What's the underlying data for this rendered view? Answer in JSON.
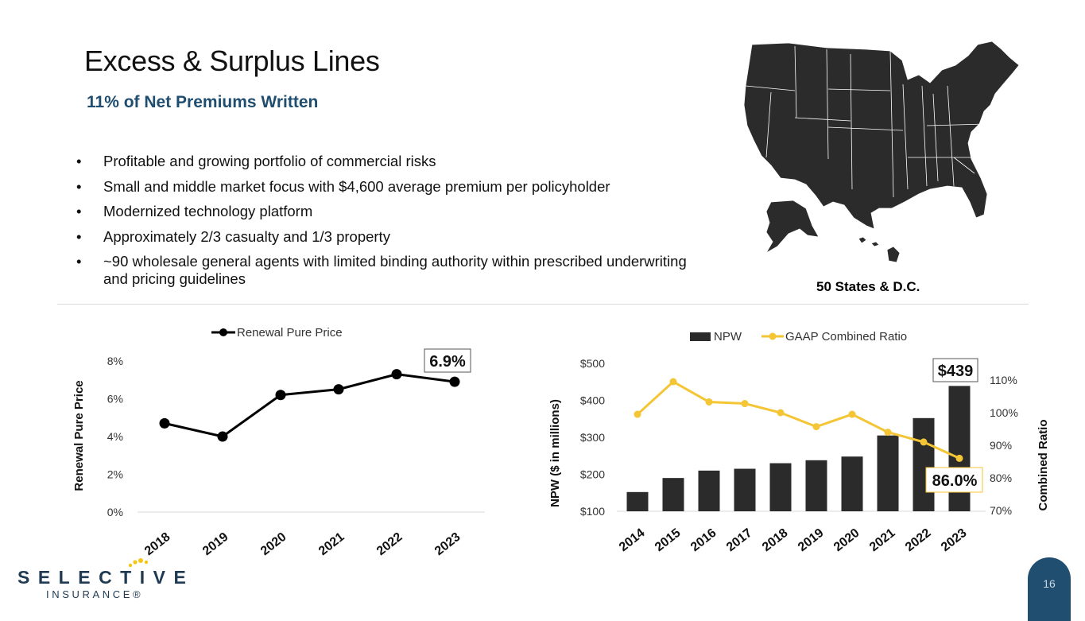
{
  "header": {
    "title": "Excess & Surplus Lines",
    "subtitle": "11% of Net Premiums Written"
  },
  "bullets": [
    "Profitable and growing portfolio of commercial risks",
    "Small and middle market focus with $4,600 average premium per policyholder",
    "Modernized technology platform",
    "Approximately 2/3 casualty and 1/3 property",
    "~90 wholesale general agents with limited binding authority within prescribed underwriting and pricing guidelines"
  ],
  "bullet_symbol": "•",
  "map": {
    "caption": "50 States & D.C.",
    "fill_color": "#2b2b2b"
  },
  "logo": {
    "word": "SELECTIVE",
    "sub": "INSURANCE®",
    "accent_color": "#f5c518"
  },
  "page_number": "16",
  "colors": {
    "subtitle": "#1f4e70",
    "bar": "#2b2b2b",
    "ratio_line": "#f4c534",
    "line": "#000000"
  },
  "chart_data": [
    {
      "type": "line",
      "legend": [
        "Renewal Pure Price"
      ],
      "legend_position": "top",
      "ylabel": "Renewal Pure Price",
      "x": [
        "2018",
        "2019",
        "2020",
        "2021",
        "2022",
        "2023"
      ],
      "series": [
        {
          "name": "Renewal Pure Price",
          "values": [
            4.7,
            4.0,
            6.2,
            6.5,
            7.3,
            6.9
          ]
        }
      ],
      "y_ticks": [
        "0%",
        "2%",
        "4%",
        "6%",
        "8%"
      ],
      "ylim": [
        0,
        8
      ],
      "callout": "6.9%",
      "grid": false
    },
    {
      "type": "bar",
      "legend": [
        "NPW",
        "GAAP Combined Ratio"
      ],
      "legend_position": "top",
      "ylabel": "NPW ($ in millions)",
      "y2label": "Combined Ratio",
      "categories": [
        "2014",
        "2015",
        "2016",
        "2017",
        "2018",
        "2019",
        "2020",
        "2021",
        "2022",
        "2023"
      ],
      "series": [
        {
          "name": "NPW",
          "type": "bar",
          "values": [
            152,
            190,
            210,
            215,
            230,
            238,
            248,
            305,
            352,
            439
          ]
        },
        {
          "name": "GAAP Combined Ratio",
          "type": "line",
          "axis": "right",
          "values": [
            99.5,
            109.5,
            103.3,
            102.8,
            100.0,
            95.7,
            99.5,
            94.0,
            91.0,
            86.0
          ]
        }
      ],
      "y_ticks": [
        "$100",
        "$200",
        "$300",
        "$400",
        "$500"
      ],
      "ylim": [
        100,
        500
      ],
      "y2_ticks": [
        "70%",
        "80%",
        "90%",
        "100%",
        "110%"
      ],
      "y2lim": [
        70,
        110
      ],
      "callouts": {
        "npw": "$439",
        "ratio": "86.0%"
      },
      "grid": false
    }
  ]
}
